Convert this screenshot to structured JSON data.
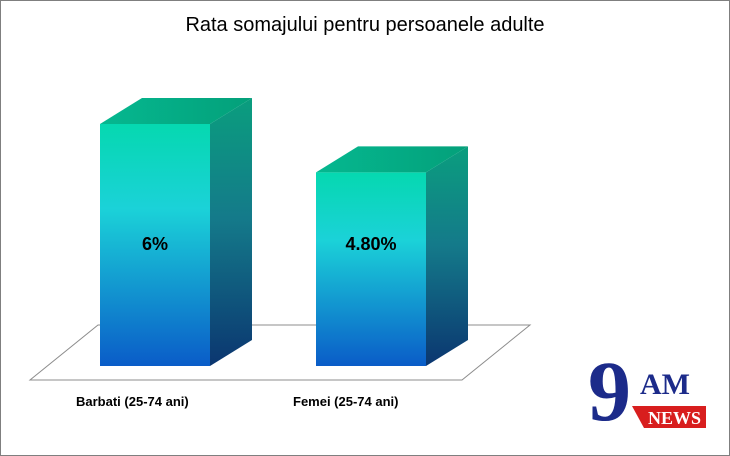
{
  "chart_data": {
    "type": "bar",
    "title": "Rata somajului pentru persoanele  adulte",
    "categories": [
      "Barbati (25-74 ani)",
      "Femei (25-74 ani)"
    ],
    "values": [
      6,
      4.8
    ],
    "value_labels": [
      "6%",
      "4.80%"
    ],
    "bar_style": "3d-gradient-teal-blue",
    "grid": false,
    "legend": "none"
  },
  "logo": {
    "text": "9AM NEWS",
    "colors": {
      "primary": "#1c2b8a",
      "accent": "#d81e1e"
    }
  },
  "colors": {
    "bar_top": "#00d6a8",
    "bar_front_top": "#1ee0c8",
    "bar_front_bottom": "#0a5fd0",
    "bar_side_top": "#0aa583",
    "bar_side_bottom": "#0b3a7a"
  }
}
